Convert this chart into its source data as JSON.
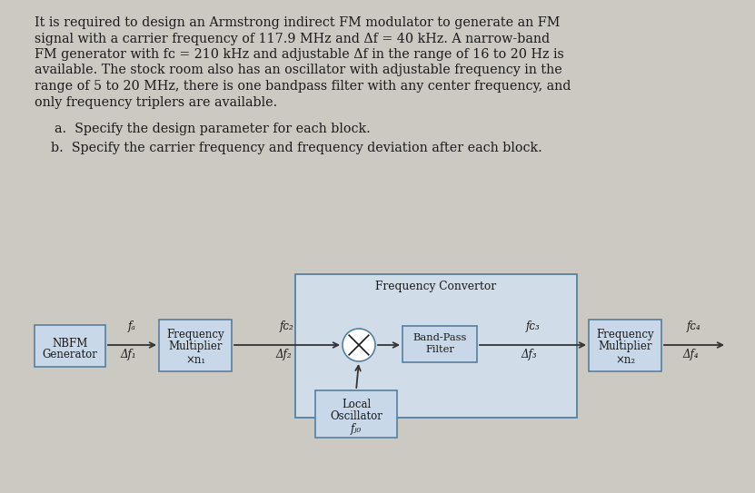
{
  "bg_color": "#ccc8c2",
  "text_color": "#1a1a1a",
  "box_face": "#c8d8e8",
  "box_edge": "#5580a0",
  "fc_box_face": "#c8d8e8",
  "fc_box_edge": "#5580a0",
  "line1": "It is required to design an Armstrong indirect FM modulator to generate an FM",
  "line2": "signal with a carrier frequency of 117.9 MHz and Δf = 40 kHz. A narrow-band",
  "line3": "FM generator with fᴄ = 210 kHz and adjustable Δf in the range of 16 to 20 Hz is",
  "line4": "available. The stock room also has an oscillator with adjustable frequency in the",
  "line5": "range of 5 to 20 MHz, there is one bandpass filter with any center frequency, and",
  "line6": "only frequency triplers are available.",
  "qa": "a.  Specify the design parameter for each block.",
  "qb": "b.  Specify the carrier frequency and frequency deviation after each block.",
  "freq_conv_label": "Frequency Convertor",
  "nbfm_line1": "NBFM",
  "nbfm_line2": "Generator",
  "freq_mult1_line1": "Frequency",
  "freq_mult1_line2": "Multiplier",
  "freq_mult1_line3": "×n₁",
  "band_pass_line1": "Band-Pass",
  "band_pass_line2": "Filter",
  "freq_mult2_line1": "Frequency",
  "freq_mult2_line2": "Multiplier",
  "freq_mult2_line3": "×n₂",
  "local_osc_line1": "Local",
  "local_osc_line2": "Oscillator",
  "local_osc_line3": "fⱼ₀",
  "label_fa": "fₐ",
  "label_df1": "Δf₁",
  "label_fc2": "fᴄ₂",
  "label_df2": "Δf₂",
  "label_fc3": "fᴄ₃",
  "label_df3": "Δf₃",
  "label_fc4": "fᴄ₄",
  "label_df4": "Δf₄",
  "fig_w": 8.31,
  "fig_h": 5.43,
  "dpi": 100
}
